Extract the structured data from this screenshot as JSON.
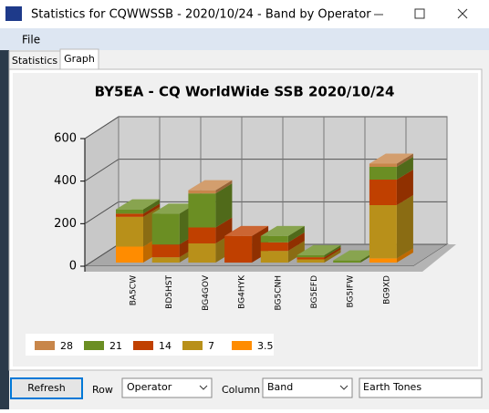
{
  "window": {
    "title": "Statistics for CQWWSSB - 2020/10/24 - Band by Operator"
  },
  "menu": [
    "File"
  ],
  "tabs": [
    "Statistics",
    "Graph"
  ],
  "chart_data": {
    "type": "bar",
    "stacked": true,
    "title": "BY5EA - CQ WorldWide SSB 2020/10/24",
    "categories": [
      "BA5CW",
      "BD5HST",
      "BG4GOV",
      "BG4HYK",
      "BG5CNH",
      "BG5EFD",
      "BG5IFW",
      "BG9XD"
    ],
    "series": [
      {
        "name": "3.5",
        "color": "#ff8c00",
        "values": [
          75,
          0,
          0,
          0,
          0,
          0,
          0,
          20
        ]
      },
      {
        "name": "7",
        "color": "#b8901a",
        "values": [
          140,
          25,
          90,
          0,
          55,
          15,
          0,
          250
        ]
      },
      {
        "name": "14",
        "color": "#c04000",
        "values": [
          15,
          60,
          75,
          125,
          40,
          10,
          0,
          120
        ]
      },
      {
        "name": "21",
        "color": "#6b8e23",
        "values": [
          20,
          145,
          160,
          0,
          30,
          10,
          10,
          60
        ]
      },
      {
        "name": "28",
        "color": "#c8864a",
        "values": [
          0,
          0,
          15,
          0,
          0,
          0,
          0,
          15
        ]
      }
    ],
    "ylim": [
      0,
      600
    ],
    "yticks": [
      0,
      200,
      400,
      600
    ],
    "grid": true,
    "legend": "bottom-left"
  },
  "controls": {
    "refresh": "Refresh",
    "row_label": "Row",
    "row_value": "Operator",
    "column_label": "Column",
    "column_value": "Band",
    "palette": "Earth Tones"
  }
}
